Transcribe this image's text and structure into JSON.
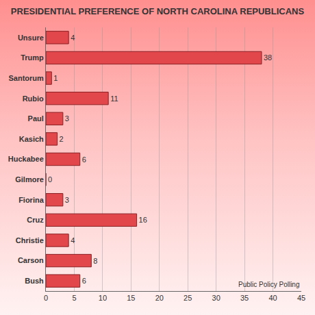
{
  "chart_data": {
    "type": "bar",
    "title": "PRESIDENTIAL PREFERENCE OF NORTH CAROLINA REPUBLICANS",
    "orientation": "horizontal",
    "categories": [
      "Unsure",
      "Trump",
      "Santorum",
      "Rubio",
      "Paul",
      "Kasich",
      "Huckabee",
      "Gilmore",
      "Fiorina",
      "Cruz",
      "Christie",
      "Carson",
      "Bush"
    ],
    "values": [
      4,
      38,
      1,
      11,
      3,
      2,
      6,
      0,
      3,
      16,
      4,
      8,
      6
    ],
    "color": "#e2474c",
    "xlim": [
      0,
      45
    ],
    "xticks": [
      0,
      5,
      10,
      15,
      20,
      25,
      30,
      35,
      40,
      45
    ],
    "grid": true,
    "data_labels": true,
    "annotations": [
      "Public Policy Polling"
    ]
  }
}
